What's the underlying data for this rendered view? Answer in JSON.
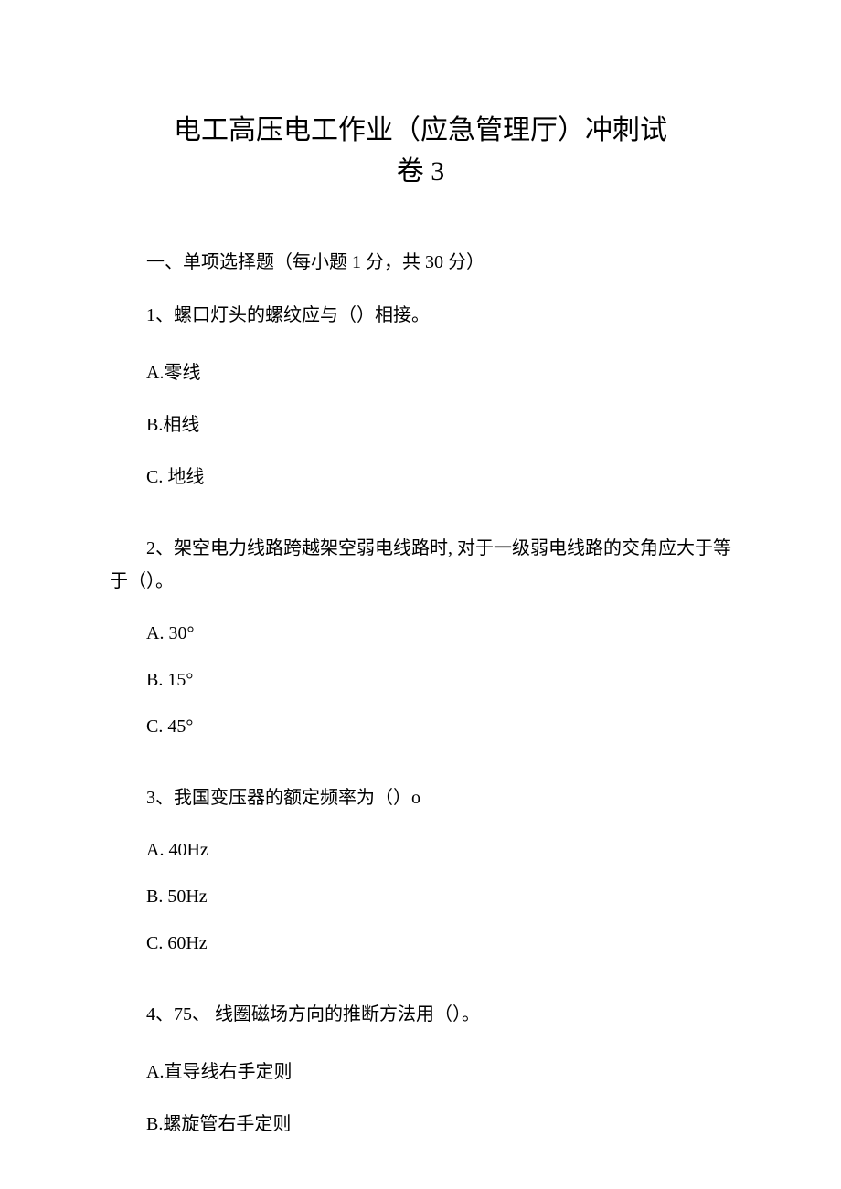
{
  "title_line1": "电工高压电工作业（应急管理厅）冲刺试",
  "title_line2": "卷 3",
  "section1_header": "一、单项选择题（每小题 1 分，共 30 分）",
  "q1": {
    "text": "1、螺口灯头的螺纹应与（）相接。",
    "a": "A.零线",
    "b": "B.相线",
    "c": "C.  地线"
  },
  "q2": {
    "text": "2、架空电力线路跨越架空弱电线路时, 对于一级弱电线路的交角应大于等于（）。",
    "a": "A.   30°",
    "b": "B.   15°",
    "c": "C.   45°"
  },
  "q3": {
    "text": "3、我国变压器的额定频率为（）o",
    "a": "A.   40Hz",
    "b": "B.   50Hz",
    "c": "C.   60Hz"
  },
  "q4": {
    "text": "4、75、 线圈磁场方向的推断方法用（）。",
    "a": "A.直导线右手定则",
    "b": "B.螺旋管右手定则"
  }
}
